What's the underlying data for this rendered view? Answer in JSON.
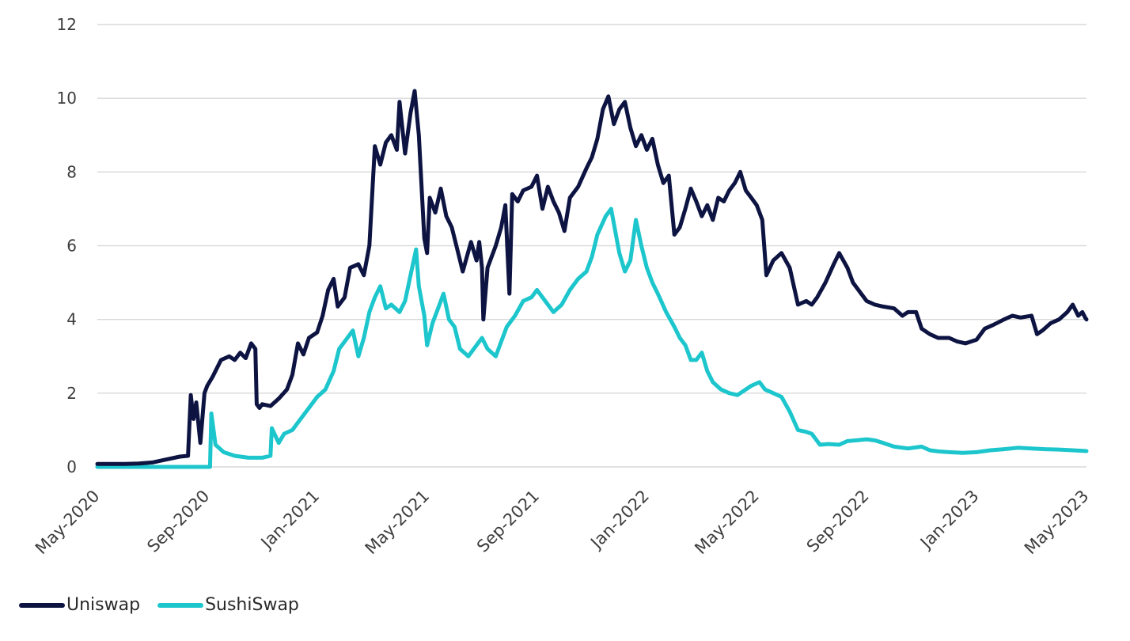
{
  "chart_data": {
    "type": "line",
    "title": "",
    "xlabel": "",
    "ylabel": "",
    "ylim": [
      0,
      12
    ],
    "yticks": [
      0,
      2,
      4,
      6,
      8,
      10,
      12
    ],
    "x_range": [
      "2020-05",
      "2023-05"
    ],
    "x_tick_labels": [
      "May-2020",
      "Sep-2020",
      "Jan-2021",
      "May-2021",
      "Sep-2021",
      "Jan-2022",
      "May-2022",
      "Sep-2022",
      "Jan-2023",
      "May-2023"
    ],
    "grid": true,
    "legend_position": "bottom-left",
    "series": [
      {
        "name": "Uniswap",
        "color": "#0d1442",
        "points": [
          [
            0.0,
            0.08
          ],
          [
            1.0,
            0.08
          ],
          [
            1.5,
            0.09
          ],
          [
            2.0,
            0.12
          ],
          [
            2.5,
            0.2
          ],
          [
            3.0,
            0.28
          ],
          [
            3.3,
            0.3
          ],
          [
            3.4,
            1.95
          ],
          [
            3.5,
            1.3
          ],
          [
            3.6,
            1.75
          ],
          [
            3.75,
            0.65
          ],
          [
            3.9,
            2.0
          ],
          [
            4.0,
            2.2
          ],
          [
            4.2,
            2.45
          ],
          [
            4.5,
            2.9
          ],
          [
            4.8,
            3.0
          ],
          [
            5.0,
            2.9
          ],
          [
            5.2,
            3.1
          ],
          [
            5.4,
            2.95
          ],
          [
            5.6,
            3.35
          ],
          [
            5.75,
            3.2
          ],
          [
            5.8,
            1.7
          ],
          [
            5.9,
            1.6
          ],
          [
            6.0,
            1.7
          ],
          [
            6.3,
            1.65
          ],
          [
            6.6,
            1.85
          ],
          [
            6.9,
            2.1
          ],
          [
            7.1,
            2.5
          ],
          [
            7.3,
            3.35
          ],
          [
            7.5,
            3.05
          ],
          [
            7.7,
            3.5
          ],
          [
            8.0,
            3.65
          ],
          [
            8.2,
            4.1
          ],
          [
            8.4,
            4.8
          ],
          [
            8.6,
            5.1
          ],
          [
            8.75,
            4.35
          ],
          [
            9.0,
            4.6
          ],
          [
            9.2,
            5.4
          ],
          [
            9.5,
            5.5
          ],
          [
            9.7,
            5.2
          ],
          [
            9.9,
            6.0
          ],
          [
            10.1,
            8.7
          ],
          [
            10.3,
            8.2
          ],
          [
            10.5,
            8.8
          ],
          [
            10.7,
            9.0
          ],
          [
            10.9,
            8.6
          ],
          [
            11.0,
            9.9
          ],
          [
            11.2,
            8.5
          ],
          [
            11.4,
            9.6
          ],
          [
            11.55,
            10.2
          ],
          [
            11.7,
            9.0
          ],
          [
            11.9,
            6.2
          ],
          [
            12.0,
            5.8
          ],
          [
            12.1,
            7.3
          ],
          [
            12.3,
            6.9
          ],
          [
            12.5,
            7.55
          ],
          [
            12.7,
            6.8
          ],
          [
            12.9,
            6.5
          ],
          [
            13.1,
            5.9
          ],
          [
            13.3,
            5.3
          ],
          [
            13.6,
            6.1
          ],
          [
            13.8,
            5.6
          ],
          [
            13.9,
            6.1
          ],
          [
            14.0,
            5.4
          ],
          [
            14.05,
            4.0
          ],
          [
            14.2,
            5.4
          ],
          [
            14.5,
            6.0
          ],
          [
            14.7,
            6.5
          ],
          [
            14.85,
            7.1
          ],
          [
            15.0,
            4.7
          ],
          [
            15.1,
            7.4
          ],
          [
            15.3,
            7.2
          ],
          [
            15.5,
            7.5
          ],
          [
            15.8,
            7.6
          ],
          [
            16.0,
            7.9
          ],
          [
            16.2,
            7.0
          ],
          [
            16.4,
            7.6
          ],
          [
            16.6,
            7.2
          ],
          [
            16.8,
            6.9
          ],
          [
            17.0,
            6.4
          ],
          [
            17.2,
            7.3
          ],
          [
            17.5,
            7.6
          ],
          [
            17.8,
            8.1
          ],
          [
            18.0,
            8.4
          ],
          [
            18.2,
            8.9
          ],
          [
            18.4,
            9.7
          ],
          [
            18.6,
            10.05
          ],
          [
            18.8,
            9.3
          ],
          [
            19.0,
            9.7
          ],
          [
            19.2,
            9.9
          ],
          [
            19.4,
            9.2
          ],
          [
            19.6,
            8.7
          ],
          [
            19.8,
            9.0
          ],
          [
            20.0,
            8.6
          ],
          [
            20.2,
            8.9
          ],
          [
            20.4,
            8.2
          ],
          [
            20.6,
            7.7
          ],
          [
            20.8,
            7.9
          ],
          [
            21.0,
            6.3
          ],
          [
            21.2,
            6.5
          ],
          [
            21.4,
            7.0
          ],
          [
            21.6,
            7.55
          ],
          [
            21.8,
            7.2
          ],
          [
            22.0,
            6.8
          ],
          [
            22.2,
            7.1
          ],
          [
            22.4,
            6.7
          ],
          [
            22.6,
            7.3
          ],
          [
            22.8,
            7.2
          ],
          [
            23.0,
            7.5
          ],
          [
            23.2,
            7.7
          ],
          [
            23.4,
            8.0
          ],
          [
            23.6,
            7.5
          ],
          [
            23.8,
            7.3
          ],
          [
            24.0,
            7.1
          ],
          [
            24.2,
            6.7
          ],
          [
            24.35,
            5.2
          ],
          [
            24.6,
            5.6
          ],
          [
            24.9,
            5.8
          ],
          [
            25.2,
            5.4
          ],
          [
            25.5,
            4.4
          ],
          [
            25.8,
            4.5
          ],
          [
            26.0,
            4.4
          ],
          [
            26.2,
            4.6
          ],
          [
            26.5,
            5.0
          ],
          [
            26.8,
            5.5
          ],
          [
            27.0,
            5.8
          ],
          [
            27.3,
            5.4
          ],
          [
            27.5,
            5.0
          ],
          [
            27.8,
            4.7
          ],
          [
            28.0,
            4.5
          ],
          [
            28.3,
            4.4
          ],
          [
            28.6,
            4.35
          ],
          [
            29.0,
            4.3
          ],
          [
            29.3,
            4.1
          ],
          [
            29.5,
            4.2
          ],
          [
            29.8,
            4.2
          ],
          [
            30.0,
            3.75
          ],
          [
            30.3,
            3.6
          ],
          [
            30.6,
            3.5
          ],
          [
            31.0,
            3.5
          ],
          [
            31.3,
            3.4
          ],
          [
            31.6,
            3.35
          ],
          [
            32.0,
            3.45
          ],
          [
            32.3,
            3.75
          ],
          [
            32.6,
            3.85
          ],
          [
            33.0,
            4.0
          ],
          [
            33.3,
            4.1
          ],
          [
            33.6,
            4.05
          ],
          [
            34.0,
            4.1
          ],
          [
            34.2,
            3.6
          ],
          [
            34.4,
            3.7
          ],
          [
            34.7,
            3.9
          ],
          [
            35.0,
            4.0
          ],
          [
            35.3,
            4.2
          ],
          [
            35.5,
            4.4
          ],
          [
            35.7,
            4.1
          ],
          [
            35.85,
            4.2
          ],
          [
            35.95,
            4.05
          ],
          [
            36.0,
            4.0
          ]
        ]
      },
      {
        "name": "SushiSwap",
        "color": "#1cc6cc",
        "points": [
          [
            0.0,
            0.0
          ],
          [
            4.1,
            0.0
          ],
          [
            4.15,
            1.45
          ],
          [
            4.3,
            0.6
          ],
          [
            4.6,
            0.4
          ],
          [
            5.0,
            0.3
          ],
          [
            5.5,
            0.25
          ],
          [
            6.0,
            0.25
          ],
          [
            6.3,
            0.3
          ],
          [
            6.35,
            1.05
          ],
          [
            6.6,
            0.65
          ],
          [
            6.8,
            0.9
          ],
          [
            7.1,
            1.0
          ],
          [
            7.4,
            1.3
          ],
          [
            7.7,
            1.6
          ],
          [
            8.0,
            1.9
          ],
          [
            8.3,
            2.1
          ],
          [
            8.6,
            2.6
          ],
          [
            8.8,
            3.2
          ],
          [
            9.1,
            3.5
          ],
          [
            9.3,
            3.7
          ],
          [
            9.5,
            3.0
          ],
          [
            9.7,
            3.5
          ],
          [
            9.9,
            4.2
          ],
          [
            10.1,
            4.6
          ],
          [
            10.3,
            4.9
          ],
          [
            10.5,
            4.3
          ],
          [
            10.7,
            4.4
          ],
          [
            11.0,
            4.2
          ],
          [
            11.2,
            4.5
          ],
          [
            11.4,
            5.2
          ],
          [
            11.6,
            5.9
          ],
          [
            11.7,
            4.9
          ],
          [
            11.9,
            4.1
          ],
          [
            12.0,
            3.3
          ],
          [
            12.2,
            3.9
          ],
          [
            12.4,
            4.3
          ],
          [
            12.6,
            4.7
          ],
          [
            12.8,
            4.0
          ],
          [
            13.0,
            3.8
          ],
          [
            13.2,
            3.2
          ],
          [
            13.5,
            3.0
          ],
          [
            13.8,
            3.3
          ],
          [
            14.0,
            3.5
          ],
          [
            14.2,
            3.2
          ],
          [
            14.5,
            3.0
          ],
          [
            14.7,
            3.4
          ],
          [
            14.9,
            3.8
          ],
          [
            15.2,
            4.1
          ],
          [
            15.5,
            4.5
          ],
          [
            15.8,
            4.6
          ],
          [
            16.0,
            4.8
          ],
          [
            16.3,
            4.5
          ],
          [
            16.6,
            4.2
          ],
          [
            16.9,
            4.4
          ],
          [
            17.2,
            4.8
          ],
          [
            17.5,
            5.1
          ],
          [
            17.8,
            5.3
          ],
          [
            18.0,
            5.7
          ],
          [
            18.2,
            6.3
          ],
          [
            18.5,
            6.8
          ],
          [
            18.7,
            7.0
          ],
          [
            18.9,
            6.2
          ],
          [
            19.0,
            5.8
          ],
          [
            19.2,
            5.3
          ],
          [
            19.4,
            5.6
          ],
          [
            19.6,
            6.7
          ],
          [
            19.8,
            6.0
          ],
          [
            20.0,
            5.4
          ],
          [
            20.2,
            5.0
          ],
          [
            20.4,
            4.7
          ],
          [
            20.7,
            4.2
          ],
          [
            21.0,
            3.8
          ],
          [
            21.2,
            3.5
          ],
          [
            21.4,
            3.3
          ],
          [
            21.6,
            2.9
          ],
          [
            21.8,
            2.9
          ],
          [
            22.0,
            3.1
          ],
          [
            22.2,
            2.6
          ],
          [
            22.4,
            2.3
          ],
          [
            22.7,
            2.1
          ],
          [
            23.0,
            2.0
          ],
          [
            23.3,
            1.95
          ],
          [
            23.6,
            2.1
          ],
          [
            23.8,
            2.2
          ],
          [
            24.1,
            2.3
          ],
          [
            24.3,
            2.1
          ],
          [
            24.6,
            2.0
          ],
          [
            24.9,
            1.9
          ],
          [
            25.2,
            1.5
          ],
          [
            25.5,
            1.0
          ],
          [
            25.8,
            0.95
          ],
          [
            26.0,
            0.9
          ],
          [
            26.3,
            0.6
          ],
          [
            26.6,
            0.62
          ],
          [
            27.0,
            0.6
          ],
          [
            27.3,
            0.7
          ],
          [
            27.6,
            0.72
          ],
          [
            28.0,
            0.75
          ],
          [
            28.3,
            0.72
          ],
          [
            28.6,
            0.65
          ],
          [
            29.0,
            0.55
          ],
          [
            29.5,
            0.5
          ],
          [
            30.0,
            0.55
          ],
          [
            30.3,
            0.45
          ],
          [
            30.6,
            0.42
          ],
          [
            31.0,
            0.4
          ],
          [
            31.5,
            0.38
          ],
          [
            32.0,
            0.4
          ],
          [
            32.5,
            0.45
          ],
          [
            33.0,
            0.48
          ],
          [
            33.5,
            0.52
          ],
          [
            34.0,
            0.5
          ],
          [
            34.5,
            0.48
          ],
          [
            35.0,
            0.47
          ],
          [
            35.5,
            0.45
          ],
          [
            36.0,
            0.43
          ]
        ]
      }
    ]
  }
}
